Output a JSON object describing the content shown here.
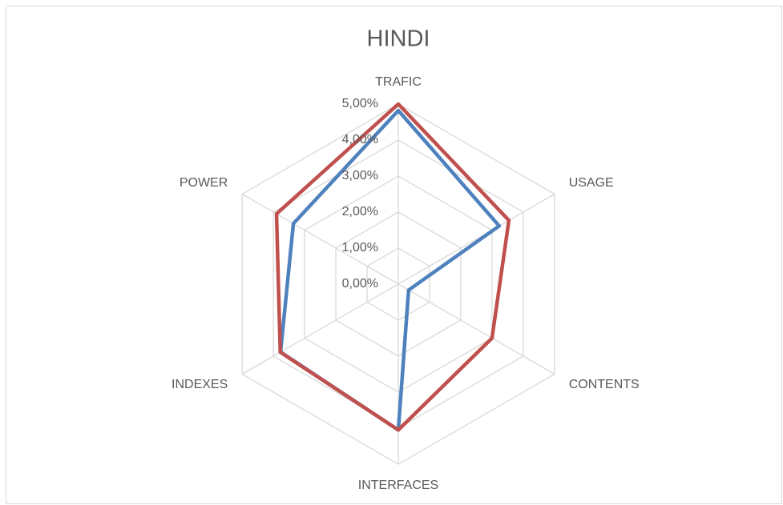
{
  "chart_data": {
    "type": "radar",
    "title": "HINDI",
    "categories": [
      "TRAFIC",
      "USAGE",
      "CONTENTS",
      "INTERFACES",
      "INDEXES",
      "POWER"
    ],
    "series": [
      {
        "color": "#4f81bd",
        "values": [
          4.82,
          3.23,
          0.33,
          4.05,
          3.77,
          3.36
        ]
      },
      {
        "color": "#c0504d",
        "values": [
          5.0,
          3.54,
          3.0,
          4.05,
          3.78,
          3.9
        ]
      }
    ],
    "ylim": [
      0,
      5
    ],
    "yticks": [
      {
        "value": 0,
        "label": "0,00%"
      },
      {
        "value": 1,
        "label": "1,00%"
      },
      {
        "value": 2,
        "label": "2,00%"
      },
      {
        "value": 3,
        "label": "3,00%"
      },
      {
        "value": 4,
        "label": "4,00%"
      },
      {
        "value": 5,
        "label": "5,00%"
      }
    ],
    "grid": true
  }
}
